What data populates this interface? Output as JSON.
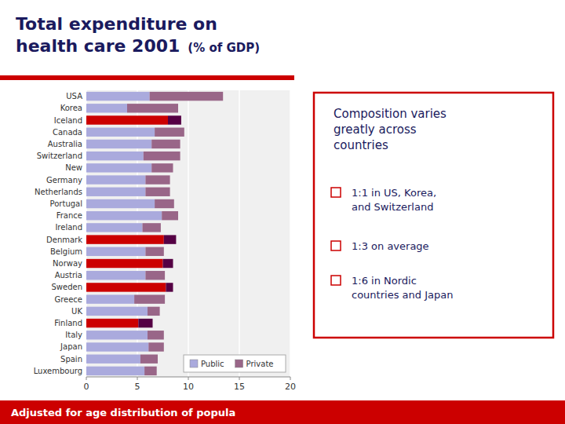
{
  "chart_data": {
    "type": "bar",
    "orientation": "horizontal",
    "stacked": true,
    "title": "Total expenditure on\nhealth care 2001",
    "subtitle": "(% of GDP)",
    "categories": [
      "USA",
      "Korea",
      "Iceland",
      "Canada",
      "Australia",
      "Switzerland",
      "New",
      "Germany",
      "Netherlands",
      "Portugal",
      "France",
      "Ireland",
      "Denmark",
      "Belgium",
      "Norway",
      "Austria",
      "Sweden",
      "Greece",
      "UK",
      "Finland",
      "Italy",
      "Japan",
      "Spain",
      "Luxembourg"
    ],
    "series": [
      {
        "name": "Public",
        "color": "#aaaadd",
        "colors": [
          "#aaaadd",
          "#aaaadd",
          "#cc0000",
          "#aaaadd",
          "#aaaadd",
          "#aaaadd",
          "#aaaadd",
          "#aaaadd",
          "#aaaadd",
          "#aaaadd",
          "#aaaadd",
          "#aaaadd",
          "#cc0000",
          "#aaaadd",
          "#cc0000",
          "#aaaadd",
          "#cc0000",
          "#aaaadd",
          "#aaaadd",
          "#cc0000",
          "#aaaadd",
          "#aaaadd",
          "#aaaadd",
          "#aaaadd"
        ],
        "values": [
          6.2,
          4.0,
          8.0,
          6.7,
          6.4,
          5.6,
          6.4,
          5.8,
          5.8,
          6.7,
          7.4,
          5.5,
          7.6,
          5.8,
          7.5,
          5.8,
          7.8,
          4.7,
          6.0,
          5.1,
          6.0,
          6.1,
          5.3,
          5.7
        ]
      },
      {
        "name": "Private",
        "color": "#996688",
        "colors": [
          "#996688",
          "#996688",
          "#550044",
          "#996688",
          "#996688",
          "#996688",
          "#996688",
          "#996688",
          "#996688",
          "#996688",
          "#996688",
          "#996688",
          "#550044",
          "#996688",
          "#550044",
          "#996688",
          "#550044",
          "#996688",
          "#996688",
          "#550044",
          "#996688",
          "#996688",
          "#996688",
          "#996688"
        ],
        "values": [
          7.2,
          5.0,
          1.3,
          2.9,
          2.8,
          3.6,
          2.1,
          2.4,
          2.4,
          1.9,
          1.6,
          1.8,
          1.2,
          1.8,
          1.0,
          1.9,
          0.7,
          3.0,
          1.2,
          1.4,
          1.6,
          1.5,
          1.7,
          1.2
        ]
      }
    ],
    "xlim": [
      0,
      20
    ],
    "xticks": [
      0,
      5,
      10,
      15,
      20
    ],
    "grid": true,
    "legend": "lower right",
    "annotations": [
      "Composition varies\ngreatly across\ncountries",
      "1:1 in US, Korea,\nand Switzerland",
      "1:3 on average",
      "1:6 in Nordic\ncountries and Japan",
      "Adjusted for age distribution of popula"
    ]
  }
}
